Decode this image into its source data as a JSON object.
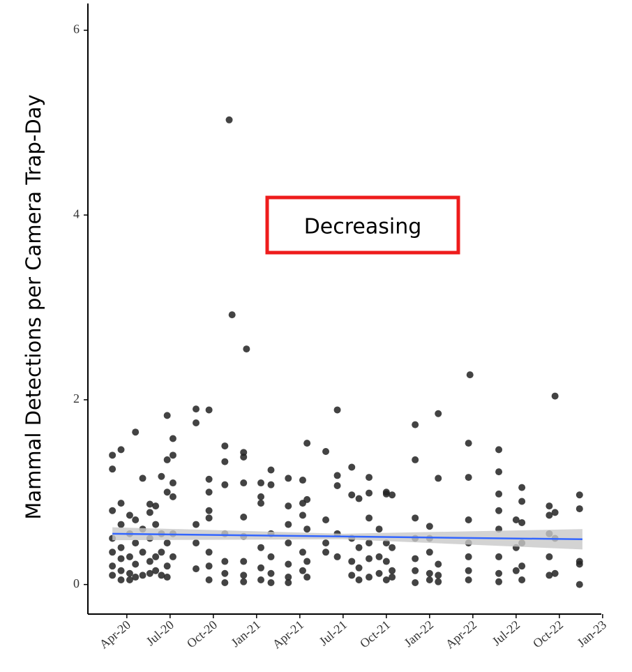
{
  "chart_data": {
    "type": "scatter",
    "y_label": "Mammal Detections per Camera Trap-Day",
    "annotation": "Decreasing",
    "annotation_color": "#ee1c1c",
    "xlim": [
      0.3,
      36.2
    ],
    "ylim": [
      -0.32,
      6.29
    ],
    "yticks": [
      0,
      2,
      4,
      6
    ],
    "xticks": [
      {
        "value": 3,
        "label": "Apr-20"
      },
      {
        "value": 6,
        "label": "Jul-20"
      },
      {
        "value": 9,
        "label": "Oct-20"
      },
      {
        "value": 12,
        "label": "Jan-21"
      },
      {
        "value": 15,
        "label": "Apr-21"
      },
      {
        "value": 18,
        "label": "Jul-21"
      },
      {
        "value": 21,
        "label": "Oct-21"
      },
      {
        "value": 24,
        "label": "Jan-22"
      },
      {
        "value": 27,
        "label": "Apr-22"
      },
      {
        "value": 30,
        "label": "Jul-22"
      },
      {
        "value": 33,
        "label": "Oct-22"
      },
      {
        "value": 36,
        "label": "Jan-23"
      }
    ],
    "series": [
      {
        "type": "scatter",
        "color": "#222222",
        "x": [
          2,
          2,
          2,
          2,
          2,
          2,
          2,
          2.6,
          2.6,
          2.6,
          2.6,
          2.6,
          2.6,
          2.6,
          3.2,
          3.2,
          3.2,
          3.2,
          3.2,
          3.6,
          3.6,
          3.6,
          3.6,
          3.6,
          4.1,
          4.1,
          4.1,
          4.1,
          4.6,
          4.6,
          4.6,
          4.6,
          4.6,
          5,
          5,
          5,
          5,
          5.4,
          5.4,
          5.4,
          5.4,
          5.8,
          5.8,
          5.8,
          5.8,
          5.8,
          5.8,
          6.2,
          6.2,
          6.2,
          6.2,
          6.2,
          6.2,
          7.8,
          7.8,
          7.8,
          7.8,
          7.8,
          8.7,
          8.7,
          8.7,
          8.7,
          8.7,
          8.7,
          8.7,
          8.7,
          9.8,
          9.8,
          9.8,
          9.8,
          9.8,
          9.8,
          9.8,
          10.1,
          10.3,
          11.1,
          11.1,
          11.1,
          11.1,
          11.1,
          11.1,
          11.1,
          11.1,
          11.3,
          12.3,
          12.3,
          12.3,
          12.3,
          12.3,
          12.3,
          13,
          13,
          13,
          13,
          13,
          13,
          14.2,
          14.2,
          14.2,
          14.2,
          14.2,
          14.2,
          14.2,
          15.2,
          15.2,
          15.2,
          15.2,
          15.2,
          15.5,
          15.5,
          15.5,
          15.5,
          15.5,
          16.8,
          16.8,
          16.8,
          16.8,
          17.6,
          17.6,
          17.6,
          17.6,
          17.6,
          18.6,
          18.6,
          18.6,
          18.6,
          18.6,
          19.1,
          19.1,
          19.1,
          19.1,
          19.8,
          19.8,
          19.8,
          19.8,
          19.8,
          19.8,
          20.5,
          20.5,
          20.5,
          21,
          21,
          21,
          21,
          21,
          21.4,
          21.4,
          21.4,
          21.4,
          23,
          23,
          23,
          23,
          23,
          23,
          23,
          24,
          24,
          24,
          24,
          24,
          24.6,
          24.6,
          24.6,
          24.6,
          24.6,
          26.7,
          26.7,
          26.7,
          26.7,
          26.7,
          26.7,
          26.7,
          26.8,
          28.8,
          28.8,
          28.8,
          28.8,
          28.8,
          28.8,
          28.8,
          28.8,
          30,
          30,
          30,
          30.4,
          30.4,
          30.4,
          30.4,
          30.4,
          30.4,
          32.3,
          32.3,
          32.3,
          32.3,
          32.3,
          32.7,
          32.7,
          32.7,
          32.7,
          34.4,
          34.4,
          34.4,
          34.4,
          34.4
        ],
        "values": [
          1.4,
          1.25,
          0.8,
          0.5,
          0.35,
          0.2,
          0.1,
          1.46,
          0.88,
          0.65,
          0.4,
          0.28,
          0.15,
          0.05,
          0.75,
          0.55,
          0.3,
          0.12,
          0.05,
          1.65,
          0.7,
          0.45,
          0.22,
          0.08,
          1.15,
          0.6,
          0.35,
          0.1,
          0.87,
          0.78,
          0.5,
          0.25,
          0.12,
          0.85,
          0.65,
          0.3,
          0.15,
          1.17,
          0.55,
          0.35,
          0.1,
          1.83,
          1.35,
          1,
          0.45,
          0.2,
          0.08,
          1.58,
          1.4,
          1.1,
          0.95,
          0.55,
          0.3,
          1.9,
          1.75,
          0.65,
          0.45,
          0.17,
          1.89,
          1.14,
          1,
          0.8,
          0.72,
          0.35,
          0.2,
          0.05,
          1.5,
          1.33,
          1.08,
          0.55,
          0.25,
          0.12,
          0.02,
          5.03,
          2.92,
          1.43,
          1.38,
          1.1,
          0.73,
          0.52,
          0.25,
          0.1,
          0.03,
          2.55,
          1.1,
          0.95,
          0.88,
          0.4,
          0.18,
          0.05,
          1.24,
          1.08,
          0.55,
          0.3,
          0.12,
          0.02,
          1.15,
          0.85,
          0.65,
          0.45,
          0.22,
          0.08,
          0.02,
          1.13,
          0.88,
          0.75,
          0.35,
          0.15,
          1.53,
          0.92,
          0.6,
          0.25,
          0.08,
          1.44,
          0.7,
          0.45,
          0.35,
          1.89,
          1.18,
          1.07,
          0.55,
          0.3,
          1.27,
          0.97,
          0.5,
          0.25,
          0.1,
          0.93,
          0.4,
          0.18,
          0.05,
          1.16,
          0.99,
          0.72,
          0.45,
          0.28,
          0.08,
          0.6,
          0.3,
          0.12,
          1,
          0.98,
          0.45,
          0.25,
          0.05,
          0.97,
          0.4,
          0.15,
          0.08,
          1.73,
          1.35,
          0.72,
          0.5,
          0.28,
          0.15,
          0.02,
          0.63,
          0.5,
          0.35,
          0.12,
          0.05,
          1.85,
          1.15,
          0.22,
          0.1,
          0.03,
          1.53,
          1.16,
          0.7,
          0.45,
          0.3,
          0.15,
          0.05,
          2.27,
          1.46,
          1.22,
          0.98,
          0.8,
          0.6,
          0.3,
          0.12,
          0.03,
          0.7,
          0.4,
          0.15,
          1.05,
          0.9,
          0.67,
          0.45,
          0.2,
          0.05,
          0.85,
          0.75,
          0.55,
          0.3,
          0.1,
          2.04,
          0.78,
          0.5,
          0.12,
          0.97,
          0.82,
          0.25,
          0.22,
          0
        ]
      },
      {
        "type": "line",
        "color": "#3366ff",
        "band_color": "#c8c8c8",
        "x": [
          2,
          18,
          34.6
        ],
        "values": [
          0.55,
          0.52,
          0.49
        ],
        "lower": [
          0.48,
          0.49,
          0.38
        ],
        "upper": [
          0.62,
          0.55,
          0.6
        ]
      }
    ]
  }
}
